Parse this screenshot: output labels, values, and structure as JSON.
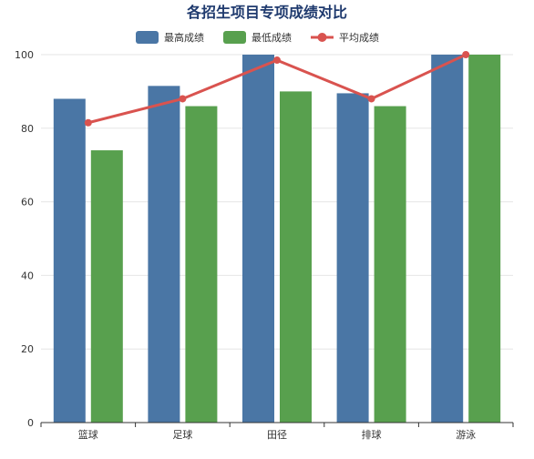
{
  "chart_data": {
    "type": "bar",
    "title": "各招生项目专项成绩对比",
    "categories": [
      "篮球",
      "足球",
      "田径",
      "排球",
      "游泳"
    ],
    "ylim": [
      0,
      100
    ],
    "yticks": [
      0,
      20,
      40,
      60,
      80,
      100
    ],
    "grid": true,
    "legend_position": "top-center",
    "series": [
      {
        "name": "最高成绩",
        "kind": "bar",
        "color": "#4a76a5",
        "values": [
          88,
          91.5,
          100,
          89.5,
          100
        ]
      },
      {
        "name": "最低成绩",
        "kind": "bar",
        "color": "#58a04e",
        "values": [
          74,
          86,
          90,
          86,
          100
        ]
      },
      {
        "name": "平均成绩",
        "kind": "line",
        "color": "#d9534f",
        "values": [
          81.5,
          88,
          98.5,
          88,
          100
        ]
      }
    ]
  }
}
